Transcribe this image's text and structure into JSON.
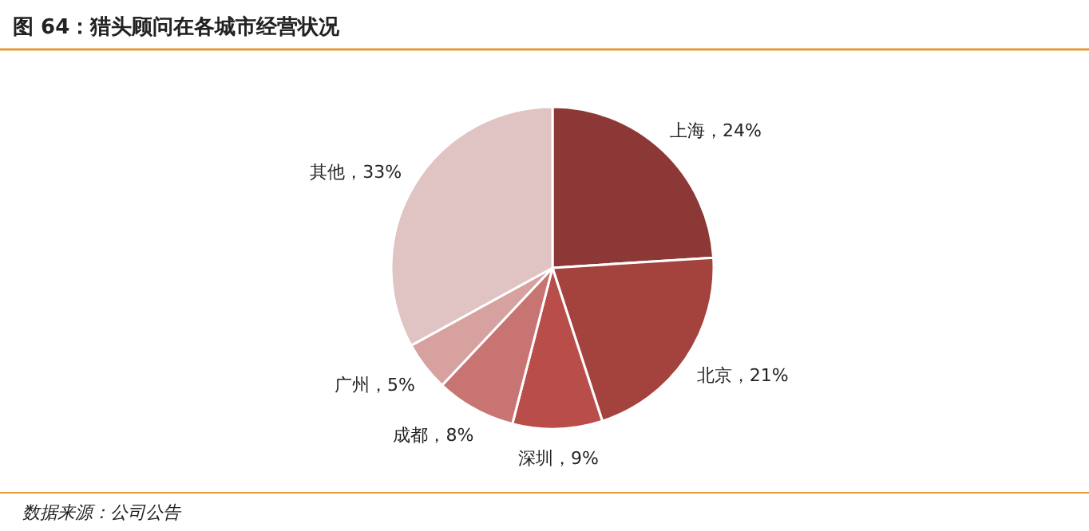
{
  "chart_data": {
    "type": "pie",
    "title": "图 64：猎头顾问在各城市经营状况",
    "categories": [
      "上海",
      "北京",
      "深圳",
      "成都",
      "广州",
      "其他"
    ],
    "values": [
      24,
      21,
      9,
      8,
      5,
      33
    ],
    "colors": [
      "#8b3836",
      "#a4423e",
      "#b94d4a",
      "#c87472",
      "#d6a19f",
      "#e0c3c3"
    ],
    "value_labels": [
      "，24%",
      "，21%",
      "，9%",
      "，8%",
      "，5%",
      "，33%"
    ],
    "annotations": [
      "数据来源：公司公告"
    ]
  }
}
